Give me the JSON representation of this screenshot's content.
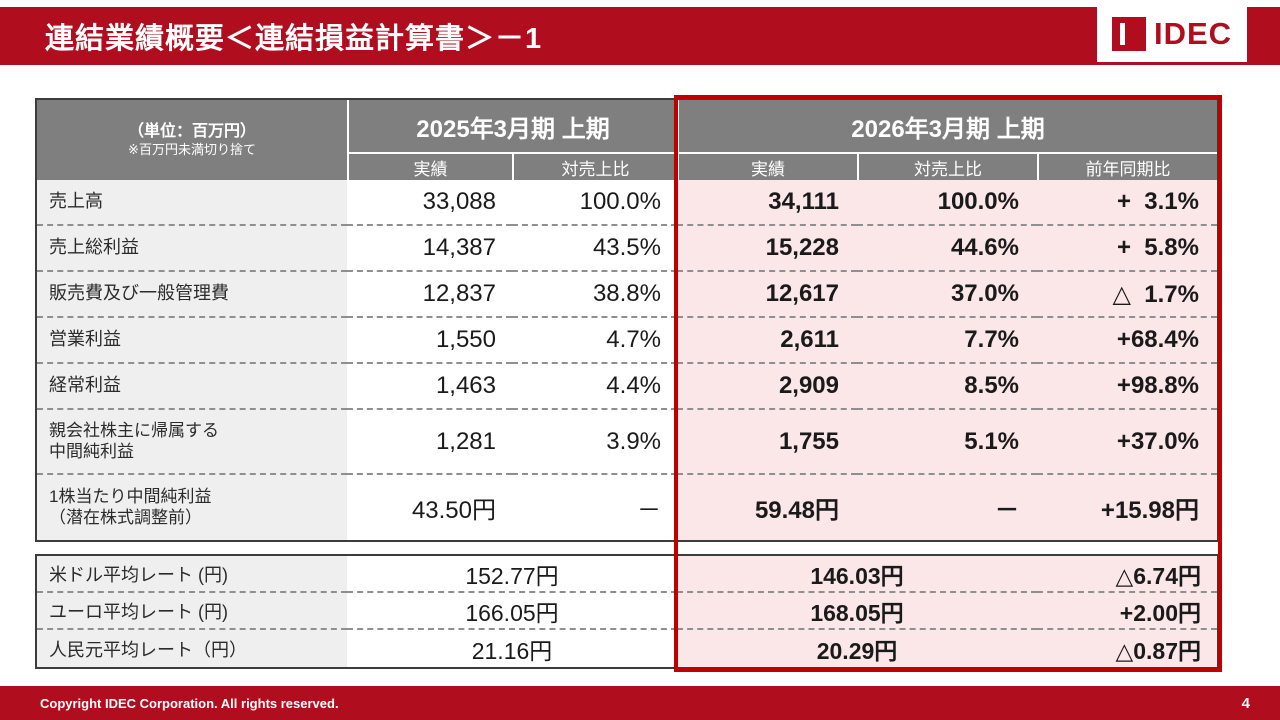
{
  "slide": {
    "title": "連結業績概要＜連結損益計算書＞－1",
    "logo_text": "IDEC"
  },
  "colors": {
    "brand_red": "#b00e1e",
    "highlight_border": "#c00000",
    "highlight_fill": "#fbe7e8",
    "header_gray": "#7f7f7f"
  },
  "table": {
    "unit_note_1": "（単位：百万円）",
    "unit_note_2": "※百万円未満切り捨て",
    "group_2025": "2025年3月期 上期",
    "group_2026": "2026年3月期 上期",
    "sub25": [
      "実績",
      "対売上比"
    ],
    "sub26": [
      "実績",
      "対売上比",
      "前年同期比"
    ],
    "rows": [
      {
        "label": "売上高",
        "a25": "33,088",
        "r25": "100.0%",
        "a26": "34,111",
        "r26": "100.0%",
        "yoy": "+  3.1%"
      },
      {
        "label": "売上総利益",
        "a25": "14,387",
        "r25": "43.5%",
        "a26": "15,228",
        "r26": "44.6%",
        "yoy": "+  5.8%"
      },
      {
        "label": "販売費及び一般管理費",
        "a25": "12,837",
        "r25": "38.8%",
        "a26": "12,617",
        "r26": "37.0%",
        "yoy": "△  1.7%"
      },
      {
        "label": "営業利益",
        "a25": "1,550",
        "r25": "4.7%",
        "a26": "2,611",
        "r26": "7.7%",
        "yoy": "+68.4%"
      },
      {
        "label": "経常利益",
        "a25": "1,463",
        "r25": "4.4%",
        "a26": "2,909",
        "r26": "8.5%",
        "yoy": "+98.8%"
      },
      {
        "label": "親会社株主に帰属する\n中間純利益",
        "a25": "1,281",
        "r25": "3.9%",
        "a26": "1,755",
        "r26": "5.1%",
        "yoy": "+37.0%"
      },
      {
        "label": "1株当たり中間純利益\n（潜在株式調整前）",
        "a25": "43.50円",
        "r25": "－",
        "a26": "59.48円",
        "r26": "－",
        "yoy": "+15.98円"
      }
    ],
    "fx_rows": [
      {
        "label": "米ドル平均レート (円)",
        "v25": "152.77円",
        "v26": "146.03円",
        "yoy": "△6.74円"
      },
      {
        "label": "ユーロ平均レート (円)",
        "v25": "166.05円",
        "v26": "168.05円",
        "yoy": "+2.00円"
      },
      {
        "label": "人民元平均レート（円）",
        "v25": "21.16円",
        "v26": "20.29円",
        "yoy": "△0.87円"
      }
    ]
  },
  "footer": {
    "copyright": "Copyright IDEC Corporation. All rights reserved.",
    "page": "4"
  }
}
